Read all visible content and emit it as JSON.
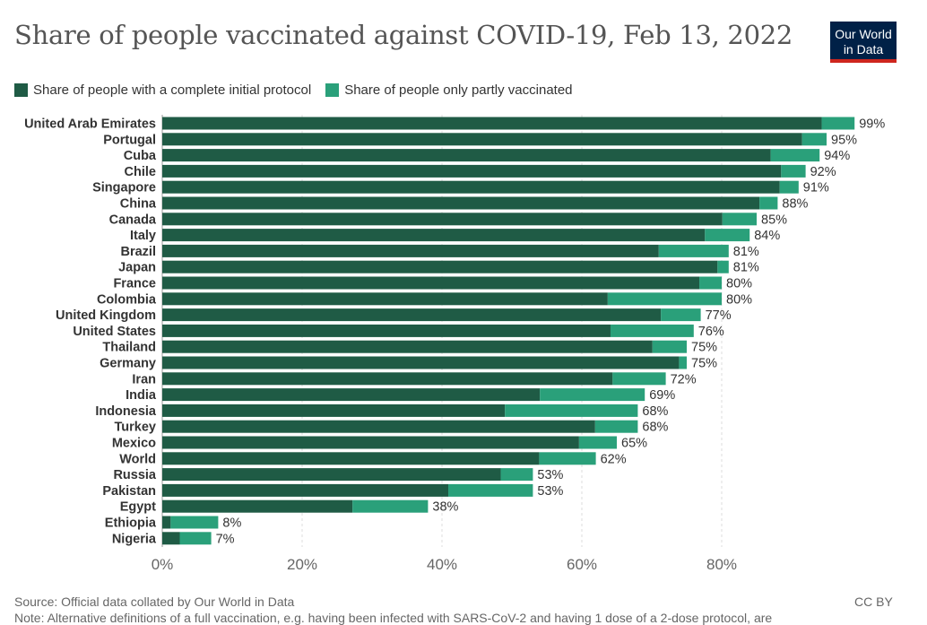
{
  "header": {
    "title": "Share of people vaccinated against COVID-19, Feb 13, 2022",
    "logo_line1": "Our World",
    "logo_line2": "in Data"
  },
  "legend": {
    "full_label": "Share of people with a complete initial protocol",
    "partial_label": "Share of people only partly vaccinated"
  },
  "footer": {
    "source": "Source: Official data collated by Our World in Data",
    "license": "CC BY",
    "note": "Note: Alternative definitions of a full vaccination, e.g. having been infected with SARS-CoV-2 and having 1 dose of a 2-dose protocol, are"
  },
  "colors": {
    "full": "#1f5b45",
    "partial": "#2aa07a",
    "grid": "#dddddd",
    "text": "#333333",
    "axis": "#666666"
  },
  "chart_data": {
    "type": "bar",
    "orientation": "horizontal",
    "stacked": true,
    "title": "Share of people vaccinated against COVID-19, Feb 13, 2022",
    "xlim": [
      0,
      100
    ],
    "xticks": [
      0,
      20,
      40,
      60,
      80
    ],
    "xtick_labels": [
      "0%",
      "20%",
      "40%",
      "60%",
      "80%"
    ],
    "grid": true,
    "legend_position": "top-left",
    "categories": [
      "United Arab Emirates",
      "Portugal",
      "Cuba",
      "Chile",
      "Singapore",
      "China",
      "Canada",
      "Italy",
      "Brazil",
      "Japan",
      "France",
      "Colombia",
      "United Kingdom",
      "United States",
      "Thailand",
      "Germany",
      "Iran",
      "India",
      "Indonesia",
      "Turkey",
      "Mexico",
      "World",
      "Russia",
      "Pakistan",
      "Egypt",
      "Ethiopia",
      "Nigeria"
    ],
    "series": [
      {
        "name": "Share of people with a complete initial protocol",
        "values": [
          94.3,
          91.5,
          87.0,
          88.5,
          88.3,
          85.4,
          80.1,
          77.6,
          71.0,
          79.4,
          76.8,
          63.7,
          71.3,
          64.1,
          70.1,
          73.9,
          64.4,
          54.0,
          49.0,
          61.9,
          59.6,
          53.9,
          48.4,
          40.9,
          27.2,
          1.2,
          2.5
        ]
      },
      {
        "name": "Share of people only partly vaccinated",
        "values": [
          4.7,
          3.5,
          7.0,
          3.5,
          2.7,
          2.6,
          4.9,
          6.4,
          10.0,
          1.6,
          3.2,
          16.3,
          5.7,
          11.9,
          4.9,
          1.1,
          7.6,
          15.0,
          19.0,
          6.1,
          5.4,
          8.1,
          4.6,
          12.1,
          10.8,
          6.8,
          4.5
        ]
      }
    ],
    "total_labels": [
      "99%",
      "95%",
      "94%",
      "92%",
      "91%",
      "88%",
      "85%",
      "84%",
      "81%",
      "81%",
      "80%",
      "80%",
      "77%",
      "76%",
      "75%",
      "75%",
      "72%",
      "69%",
      "68%",
      "68%",
      "65%",
      "62%",
      "53%",
      "53%",
      "38%",
      "8%",
      "7%"
    ]
  }
}
